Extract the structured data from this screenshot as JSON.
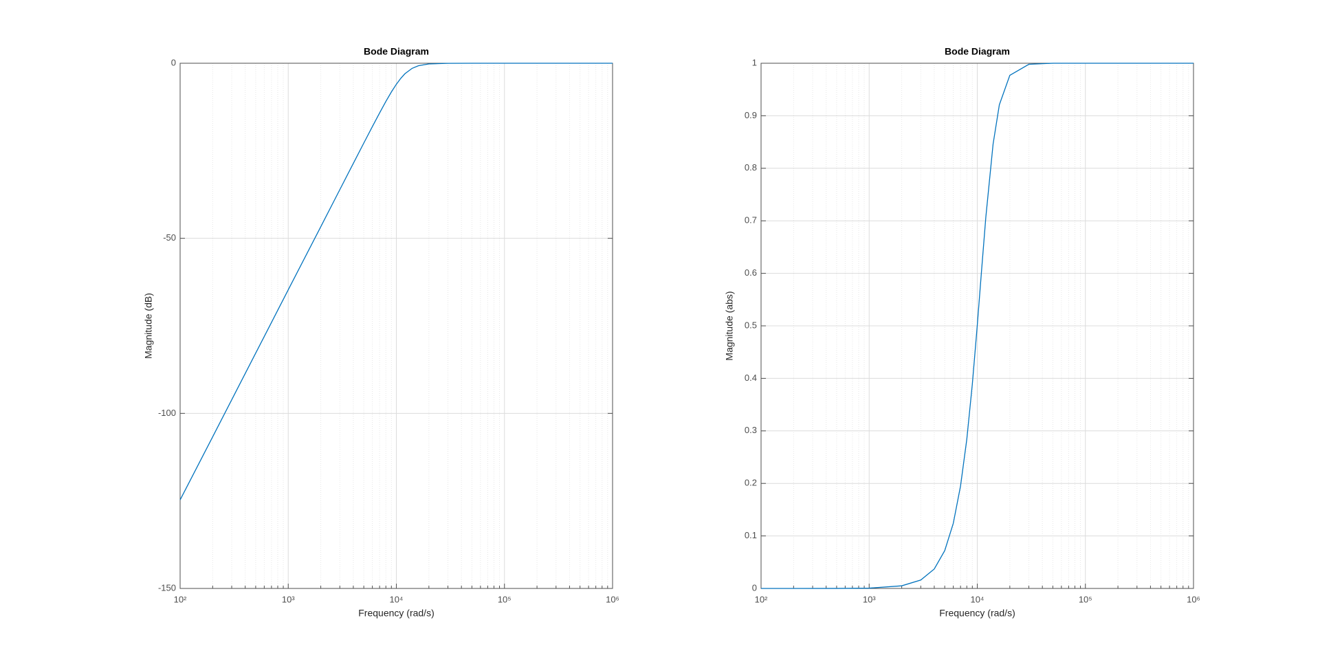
{
  "chart_data": [
    {
      "type": "line",
      "title": "Bode Diagram",
      "xlabel": "Frequency  (rad/s)",
      "ylabel": "Magnitude (dB)",
      "xscale": "log",
      "grid": true,
      "x": [
        100,
        200,
        500,
        1000,
        2000,
        3000,
        4000,
        5000,
        6000,
        7000,
        8000,
        9000,
        10000,
        11000,
        12000,
        14000,
        16000,
        20000,
        30000,
        50000,
        100000,
        1000000
      ],
      "series": [
        {
          "color": "#0072bd",
          "values": [
            -124.7,
            -106.7,
            -82.8,
            -64.7,
            -46.7,
            -36.1,
            -28.6,
            -22.8,
            -18.1,
            -14.2,
            -10.9,
            -8.2,
            -6.0,
            -4.3,
            -3.0,
            -1.45,
            -0.71,
            -0.2,
            -0.02,
            0,
            0,
            0
          ]
        }
      ],
      "xlim": [
        100,
        1000000
      ],
      "xticks": [
        {
          "value": 100,
          "label": "10²"
        },
        {
          "value": 1000,
          "label": "10³"
        },
        {
          "value": 10000,
          "label": "10⁴"
        },
        {
          "value": 100000,
          "label": "10⁵"
        },
        {
          "value": 1000000,
          "label": "10⁶"
        }
      ],
      "xminorticks": [
        200,
        300,
        400,
        500,
        600,
        700,
        800,
        900,
        2000,
        3000,
        4000,
        5000,
        6000,
        7000,
        8000,
        9000,
        20000,
        30000,
        40000,
        50000,
        60000,
        70000,
        80000,
        90000,
        200000,
        300000,
        400000,
        500000,
        600000,
        700000,
        800000,
        900000
      ],
      "ylim": [
        -150,
        0
      ],
      "yticks": [
        -150,
        -100,
        -50,
        0
      ]
    },
    {
      "type": "line",
      "title": "Bode Diagram",
      "xlabel": "Frequency  (rad/s)",
      "ylabel": "Magnitude (abs)",
      "xscale": "log",
      "grid": true,
      "x": [
        100,
        200,
        500,
        1000,
        2000,
        3000,
        4000,
        5000,
        6000,
        7000,
        8000,
        9000,
        10000,
        11000,
        12000,
        14000,
        16000,
        20000,
        30000,
        50000,
        100000,
        1000000
      ],
      "series": [
        {
          "color": "#0072bd",
          "values": [
            0,
            0,
            0.0001,
            0.0006,
            0.005,
            0.016,
            0.037,
            0.072,
            0.124,
            0.195,
            0.284,
            0.389,
            0.501,
            0.61,
            0.707,
            0.846,
            0.921,
            0.977,
            0.998,
            1,
            1,
            1
          ]
        }
      ],
      "xlim": [
        100,
        1000000
      ],
      "xticks": [
        {
          "value": 100,
          "label": "10²"
        },
        {
          "value": 1000,
          "label": "10³"
        },
        {
          "value": 10000,
          "label": "10⁴"
        },
        {
          "value": 100000,
          "label": "10⁵"
        },
        {
          "value": 1000000,
          "label": "10⁶"
        }
      ],
      "xminorticks": [
        200,
        300,
        400,
        500,
        600,
        700,
        800,
        900,
        2000,
        3000,
        4000,
        5000,
        6000,
        7000,
        8000,
        9000,
        20000,
        30000,
        40000,
        50000,
        60000,
        70000,
        80000,
        90000,
        200000,
        300000,
        400000,
        500000,
        600000,
        700000,
        800000,
        900000
      ],
      "ylim": [
        0,
        1
      ],
      "yticks": [
        0,
        0.1,
        0.2,
        0.3,
        0.4,
        0.5,
        0.6,
        0.7,
        0.8,
        0.9,
        1
      ]
    }
  ]
}
